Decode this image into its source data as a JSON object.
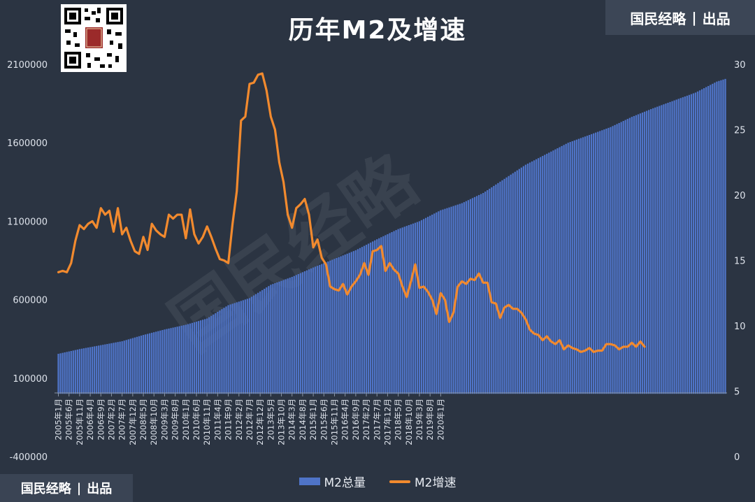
{
  "brand": {
    "name": "国民经略",
    "suffix": "出品",
    "separator": "|"
  },
  "chart_data": {
    "type": "bar+line",
    "title": "历年M2及增速",
    "left_axis": {
      "min": -400000,
      "max": 2100000,
      "ticks": [
        2100000,
        1600000,
        1100000,
        600000,
        100000,
        -400000
      ]
    },
    "right_axis": {
      "min": 0,
      "max": 30,
      "ticks": [
        30,
        25,
        20,
        15,
        10,
        5,
        0
      ]
    },
    "x_tick_labels": [
      "2005年1月",
      "2005年6月",
      "2005年11月",
      "2006年4月",
      "2006年9月",
      "2007年2月",
      "2007年7月",
      "2007年12月",
      "2008年5月",
      "2008年10月",
      "2009年3月",
      "2009年8月",
      "2010年1月",
      "2010年6月",
      "2010年11月",
      "2011年4月",
      "2011年9月",
      "2012年2月",
      "2012年7月",
      "2012年12月",
      "2013年5月",
      "2013年10月",
      "2014年3月",
      "2014年8月",
      "2015年1月",
      "2015年6月",
      "2015年11月",
      "2016年4月",
      "2016年9月",
      "2017年2月",
      "2017年7月",
      "2017年12月",
      "2018年5月",
      "2018年10月",
      "2019年3月",
      "2019年8月",
      "2020年1月"
    ],
    "series": [
      {
        "name": "M2总量",
        "type": "bar",
        "axis": "left",
        "color": "#4f74c8",
        "start": "2005年1月",
        "end": "2020年2月",
        "anchors": [
          [
            0,
            255000
          ],
          [
            10,
            285000
          ],
          [
            20,
            310000
          ],
          [
            30,
            335000
          ],
          [
            40,
            375000
          ],
          [
            50,
            410000
          ],
          [
            60,
            440000
          ],
          [
            70,
            480000
          ],
          [
            80,
            565000
          ],
          [
            90,
            610000
          ],
          [
            100,
            695000
          ],
          [
            110,
            745000
          ],
          [
            120,
            805000
          ],
          [
            130,
            860000
          ],
          [
            140,
            915000
          ],
          [
            150,
            985000
          ],
          [
            160,
            1050000
          ],
          [
            170,
            1100000
          ],
          [
            180,
            1170000
          ],
          [
            190,
            1215000
          ],
          [
            200,
            1280000
          ],
          [
            210,
            1370000
          ],
          [
            220,
            1460000
          ],
          [
            230,
            1530000
          ],
          [
            240,
            1600000
          ],
          [
            250,
            1650000
          ],
          [
            260,
            1700000
          ],
          [
            270,
            1765000
          ],
          [
            280,
            1820000
          ],
          [
            290,
            1870000
          ],
          [
            300,
            1920000
          ],
          [
            305,
            1955000
          ],
          [
            310,
            1990000
          ],
          [
            314,
            2007000
          ]
        ]
      },
      {
        "name": "M2增速",
        "type": "line",
        "axis": "right",
        "color": "#f28a2e",
        "start": "2005年1月",
        "end": "2020年2月",
        "anchors": [
          [
            0,
            14.1
          ],
          [
            2,
            14.2
          ],
          [
            4,
            14.1
          ],
          [
            6,
            14.8
          ],
          [
            8,
            16.5
          ],
          [
            10,
            17.7
          ],
          [
            12,
            17.4
          ],
          [
            14,
            17.8
          ],
          [
            16,
            18.0
          ],
          [
            18,
            17.5
          ],
          [
            20,
            19.0
          ],
          [
            22,
            18.5
          ],
          [
            24,
            18.8
          ],
          [
            26,
            17.2
          ],
          [
            28,
            19.0
          ],
          [
            30,
            17.0
          ],
          [
            32,
            17.5
          ],
          [
            34,
            16.5
          ],
          [
            36,
            15.7
          ],
          [
            38,
            15.5
          ],
          [
            40,
            16.8
          ],
          [
            42,
            15.8
          ],
          [
            44,
            17.8
          ],
          [
            46,
            17.3
          ],
          [
            48,
            17.0
          ],
          [
            50,
            16.8
          ],
          [
            52,
            18.5
          ],
          [
            54,
            18.2
          ],
          [
            56,
            18.5
          ],
          [
            58,
            18.5
          ],
          [
            60,
            16.7
          ],
          [
            62,
            18.9
          ],
          [
            64,
            17.0
          ],
          [
            66,
            16.3
          ],
          [
            68,
            16.8
          ],
          [
            70,
            17.6
          ],
          [
            72,
            16.8
          ],
          [
            74,
            15.9
          ],
          [
            76,
            15.1
          ],
          [
            78,
            15.0
          ],
          [
            80,
            14.8
          ],
          [
            82,
            17.8
          ],
          [
            84,
            20.3
          ],
          [
            86,
            25.7
          ],
          [
            88,
            26.0
          ],
          [
            90,
            28.5
          ],
          [
            92,
            28.6
          ],
          [
            94,
            29.2
          ],
          [
            96,
            29.3
          ],
          [
            98,
            28.0
          ],
          [
            100,
            26.0
          ],
          [
            102,
            25.0
          ],
          [
            104,
            22.5
          ],
          [
            106,
            21.0
          ],
          [
            108,
            18.5
          ],
          [
            110,
            17.5
          ],
          [
            112,
            19.0
          ],
          [
            114,
            19.3
          ],
          [
            116,
            19.7
          ],
          [
            118,
            18.5
          ],
          [
            120,
            16.0
          ],
          [
            122,
            16.6
          ],
          [
            124,
            15.2
          ],
          [
            126,
            14.7
          ],
          [
            128,
            13.0
          ],
          [
            130,
            12.8
          ],
          [
            132,
            12.7
          ],
          [
            134,
            13.2
          ],
          [
            136,
            12.4
          ],
          [
            138,
            13.0
          ],
          [
            140,
            13.4
          ],
          [
            142,
            13.9
          ],
          [
            144,
            14.8
          ],
          [
            146,
            13.9
          ],
          [
            148,
            15.7
          ],
          [
            150,
            15.8
          ],
          [
            152,
            16.1
          ],
          [
            154,
            14.2
          ],
          [
            156,
            14.8
          ],
          [
            158,
            14.3
          ],
          [
            160,
            14.0
          ],
          [
            162,
            13.0
          ],
          [
            164,
            12.2
          ],
          [
            166,
            13.4
          ],
          [
            168,
            14.7
          ],
          [
            170,
            12.9
          ],
          [
            172,
            13.0
          ],
          [
            174,
            12.6
          ],
          [
            176,
            12.0
          ],
          [
            178,
            10.9
          ],
          [
            180,
            12.5
          ],
          [
            182,
            12.0
          ],
          [
            184,
            10.3
          ],
          [
            186,
            11.0
          ],
          [
            188,
            13.0
          ],
          [
            190,
            13.4
          ],
          [
            192,
            13.2
          ],
          [
            194,
            13.6
          ],
          [
            196,
            13.5
          ],
          [
            198,
            14.0
          ],
          [
            200,
            13.3
          ],
          [
            202,
            13.3
          ],
          [
            204,
            11.8
          ],
          [
            206,
            11.7
          ],
          [
            208,
            10.6
          ],
          [
            210,
            11.4
          ],
          [
            212,
            11.6
          ],
          [
            214,
            11.3
          ],
          [
            216,
            11.3
          ],
          [
            218,
            11.0
          ],
          [
            220,
            10.5
          ],
          [
            222,
            9.7
          ],
          [
            224,
            9.4
          ],
          [
            226,
            9.3
          ],
          [
            228,
            8.9
          ],
          [
            230,
            9.2
          ],
          [
            232,
            8.8
          ],
          [
            234,
            8.6
          ],
          [
            236,
            8.9
          ],
          [
            238,
            8.2
          ],
          [
            240,
            8.5
          ],
          [
            242,
            8.3
          ],
          [
            244,
            8.2
          ],
          [
            246,
            8.0
          ],
          [
            248,
            8.1
          ],
          [
            250,
            8.3
          ],
          [
            252,
            8.0
          ],
          [
            254,
            8.1
          ],
          [
            256,
            8.1
          ],
          [
            258,
            8.6
          ],
          [
            260,
            8.6
          ],
          [
            262,
            8.5
          ],
          [
            264,
            8.2
          ],
          [
            266,
            8.4
          ],
          [
            268,
            8.4
          ],
          [
            270,
            8.7
          ],
          [
            272,
            8.4
          ],
          [
            274,
            8.8
          ],
          [
            276,
            8.4
          ]
        ]
      }
    ],
    "legend": {
      "position": "bottom-center"
    }
  }
}
